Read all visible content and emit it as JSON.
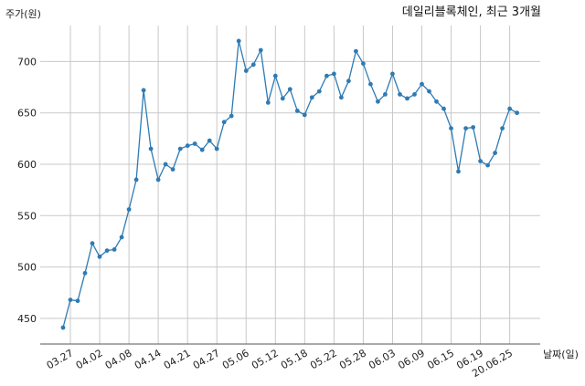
{
  "chart_data": {
    "type": "line",
    "title": "데일리블록체인, 최근 3개월",
    "ylabel": "주가(원)",
    "xlabel": "날짜(일)",
    "ylim": [
      425,
      735
    ],
    "y_ticks": [
      450,
      500,
      550,
      600,
      650,
      700
    ],
    "x_ticks": [
      "03.27",
      "04.02",
      "04.08",
      "04.14",
      "04.21",
      "04.27",
      "05.06",
      "05.12",
      "05.18",
      "05.22",
      "05.28",
      "06.03",
      "06.09",
      "06.15",
      "06.19",
      "20.06.25"
    ],
    "x_tick_indices": [
      1,
      5,
      9,
      13,
      17,
      21,
      25,
      29,
      33,
      37,
      41,
      45,
      49,
      53,
      57,
      61
    ],
    "grid": true,
    "line_color": "#2e7bb4",
    "series": [
      {
        "values": [
          441,
          468,
          467,
          494,
          523,
          510,
          516,
          517,
          529,
          556,
          585,
          672,
          615,
          585,
          600,
          595,
          615,
          618,
          620,
          614,
          623,
          615,
          641,
          647,
          720,
          691,
          697,
          711,
          660,
          686,
          664,
          673,
          652,
          648,
          665,
          671,
          686,
          688,
          665,
          681,
          710,
          698,
          678,
          661,
          668,
          688,
          668,
          664,
          668,
          678,
          671,
          661,
          654,
          635,
          593,
          635,
          636,
          603,
          599,
          611,
          635,
          654,
          650
        ]
      }
    ]
  }
}
